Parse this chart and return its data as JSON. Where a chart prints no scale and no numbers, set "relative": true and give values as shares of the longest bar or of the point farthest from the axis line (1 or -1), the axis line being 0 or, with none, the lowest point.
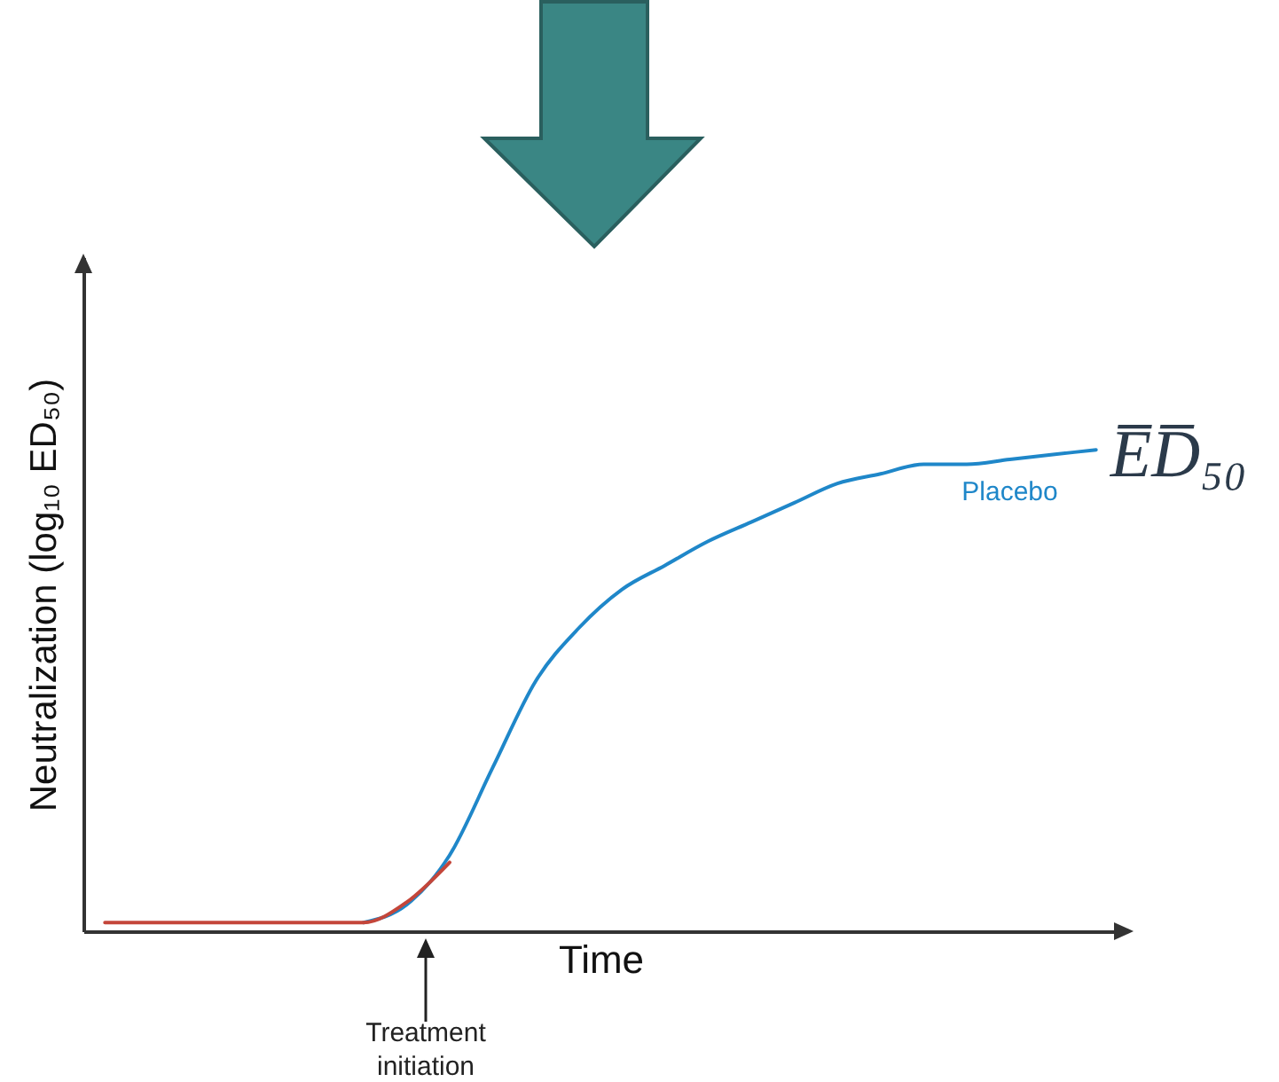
{
  "chart_data": {
    "type": "line",
    "relative": true,
    "xlabel": "Time",
    "ylabel": "Neutralization (log₁₀ ED₅₀)",
    "categories": [
      null,
      null,
      null,
      null,
      null,
      null,
      null,
      null,
      null,
      null,
      null,
      null,
      null,
      null,
      null,
      null,
      null,
      null,
      null,
      null,
      null,
      null,
      null,
      null
    ],
    "series": [
      {
        "name": "Placebo",
        "color": "#1f87c9",
        "values": [
          null,
          null,
          null,
          null,
          null,
          null,
          0.018,
          0.055,
          0.158,
          0.34,
          0.52,
          0.63,
          0.71,
          0.76,
          0.81,
          0.85,
          0.89,
          0.93,
          0.95,
          0.97,
          0.97,
          0.98,
          0.99,
          1
        ]
      },
      {
        "color": "#c4463a",
        "values": [
          0.018,
          0.018,
          0.018,
          0.018,
          0.018,
          0.018,
          0.018,
          0.06,
          0.143,
          null,
          null,
          null,
          null,
          null,
          null,
          null,
          null,
          null,
          null,
          null,
          null,
          null,
          null,
          null
        ]
      }
    ],
    "annotations": [
      "E̅D̅₅₀",
      "Treatment initiation"
    ]
  }
}
